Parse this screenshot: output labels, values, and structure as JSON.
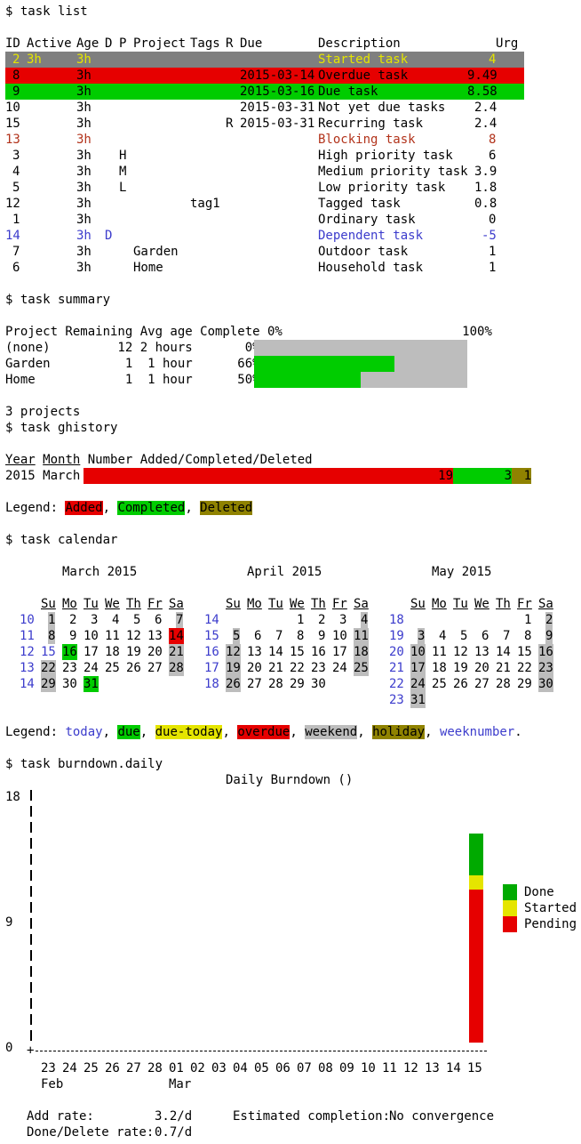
{
  "list": {
    "command": "$ task list",
    "headers": {
      "id": "ID",
      "active": "Active",
      "age": "Age",
      "d": "D",
      "p": "P",
      "project": "Project",
      "tags": "Tags",
      "r": "R",
      "due": "Due",
      "description": "Description",
      "urg": "Urg"
    },
    "rows": [
      {
        "id": "2",
        "active": "3h",
        "age": "3h",
        "d": "",
        "p": "",
        "project": "",
        "tags": "",
        "r": "",
        "due": "",
        "description": "Started task",
        "urg": "4"
      },
      {
        "id": "8",
        "active": "",
        "age": "3h",
        "d": "",
        "p": "",
        "project": "",
        "tags": "",
        "r": "",
        "due": "2015-03-14",
        "description": "Overdue task",
        "urg": "9.49"
      },
      {
        "id": "9",
        "active": "",
        "age": "3h",
        "d": "",
        "p": "",
        "project": "",
        "tags": "",
        "r": "",
        "due": "2015-03-16",
        "description": "Due task",
        "urg": "8.58"
      },
      {
        "id": "10",
        "active": "",
        "age": "3h",
        "d": "",
        "p": "",
        "project": "",
        "tags": "",
        "r": "",
        "due": "2015-03-31",
        "description": "Not yet due tasks",
        "urg": "2.4"
      },
      {
        "id": "15",
        "active": "",
        "age": "3h",
        "d": "",
        "p": "",
        "project": "",
        "tags": "",
        "r": "R",
        "due": "2015-03-31",
        "description": "Recurring task",
        "urg": "2.4"
      },
      {
        "id": "13",
        "active": "",
        "age": "3h",
        "d": "",
        "p": "",
        "project": "",
        "tags": "",
        "r": "",
        "due": "",
        "description": "Blocking task",
        "urg": "8"
      },
      {
        "id": "3",
        "active": "",
        "age": "3h",
        "d": "",
        "p": "H",
        "project": "",
        "tags": "",
        "r": "",
        "due": "",
        "description": "High priority task",
        "urg": "6"
      },
      {
        "id": "4",
        "active": "",
        "age": "3h",
        "d": "",
        "p": "M",
        "project": "",
        "tags": "",
        "r": "",
        "due": "",
        "description": "Medium priority task",
        "urg": "3.9"
      },
      {
        "id": "5",
        "active": "",
        "age": "3h",
        "d": "",
        "p": "L",
        "project": "",
        "tags": "",
        "r": "",
        "due": "",
        "description": "Low priority task",
        "urg": "1.8"
      },
      {
        "id": "12",
        "active": "",
        "age": "3h",
        "d": "",
        "p": "",
        "project": "",
        "tags": "tag1",
        "r": "",
        "due": "",
        "description": "Tagged task",
        "urg": "0.8"
      },
      {
        "id": "1",
        "active": "",
        "age": "3h",
        "d": "",
        "p": "",
        "project": "",
        "tags": "",
        "r": "",
        "due": "",
        "description": "Ordinary task",
        "urg": "0"
      },
      {
        "id": "14",
        "active": "",
        "age": "3h",
        "d": "D",
        "p": "",
        "project": "",
        "tags": "",
        "r": "",
        "due": "",
        "description": "Dependent task",
        "urg": "-5"
      },
      {
        "id": "7",
        "active": "",
        "age": "3h",
        "d": "",
        "p": "",
        "project": "Garden",
        "tags": "",
        "r": "",
        "due": "",
        "description": "Outdoor task",
        "urg": "1"
      },
      {
        "id": "6",
        "active": "",
        "age": "3h",
        "d": "",
        "p": "",
        "project": "Home",
        "tags": "",
        "r": "",
        "due": "",
        "description": "Household task",
        "urg": "1"
      }
    ],
    "row_styles": [
      {
        "bg": "#7f7f7f",
        "fg": "#e5e500"
      },
      {
        "bg": "#e60000",
        "fg": "#000000"
      },
      {
        "bg": "#00cc00",
        "fg": "#000000"
      },
      {
        "bg": "",
        "fg": "#000000"
      },
      {
        "bg": "",
        "fg": "#000000"
      },
      {
        "bg": "",
        "fg": "#b2331b"
      },
      {
        "bg": "",
        "fg": "#000000"
      },
      {
        "bg": "",
        "fg": "#000000"
      },
      {
        "bg": "",
        "fg": "#000000"
      },
      {
        "bg": "",
        "fg": "#000000"
      },
      {
        "bg": "",
        "fg": "#000000"
      },
      {
        "bg": "",
        "fg": "#3c3ccc"
      },
      {
        "bg": "",
        "fg": "#000000"
      },
      {
        "bg": "",
        "fg": "#000000"
      }
    ]
  },
  "summary": {
    "command": "$ task summary",
    "header": "Project Remaining Avg age Complete 0%                        100%",
    "rows": [
      {
        "line": "(none)         12 2 hours       0%",
        "complete": 0.0
      },
      {
        "line": "Garden          1  1 hour      66%",
        "complete": 0.66
      },
      {
        "line": "Home            1  1 hour      50%",
        "complete": 0.5
      }
    ],
    "footer": "3 projects"
  },
  "ghistory": {
    "command": "$ task ghistory",
    "col_year": "Year",
    "col_month": "Month",
    "col_rest": "Number Added/Completed/Deleted",
    "row_label": "2015 March",
    "added": 19,
    "completed": 3,
    "deleted": 1,
    "legend_prefix": "Legend: ",
    "legend_added": "Added",
    "legend_completed": "Completed",
    "legend_deleted": "Deleted",
    "comma": ", ",
    "colors": {
      "added": "#e60000",
      "completed": "#00cc00",
      "deleted": "#8f8200"
    }
  },
  "calendar": {
    "command": "$ task calendar",
    "day_headers": [
      "Su",
      "Mo",
      "Tu",
      "We",
      "Th",
      "Fr",
      "Sa"
    ],
    "months": [
      {
        "title": "March 2015",
        "weeks": [
          {
            "wk": "10",
            "days": [
              "1",
              "2",
              "3",
              "4",
              "5",
              "6",
              "7"
            ]
          },
          {
            "wk": "11",
            "days": [
              "8",
              "9",
              "10",
              "11",
              "12",
              "13",
              "14"
            ]
          },
          {
            "wk": "12",
            "days": [
              "15",
              "16",
              "17",
              "18",
              "19",
              "20",
              "21"
            ]
          },
          {
            "wk": "13",
            "days": [
              "22",
              "23",
              "24",
              "25",
              "26",
              "27",
              "28"
            ]
          },
          {
            "wk": "14",
            "days": [
              "29",
              "30",
              "31",
              "",
              "",
              "",
              ""
            ]
          }
        ],
        "marks": {
          "14": "overdue",
          "15": "today",
          "16": "due",
          "31": "due"
        }
      },
      {
        "title": "April 2015",
        "weeks": [
          {
            "wk": "14",
            "days": [
              "",
              "",
              "",
              "1",
              "2",
              "3",
              "4"
            ]
          },
          {
            "wk": "15",
            "days": [
              "5",
              "6",
              "7",
              "8",
              "9",
              "10",
              "11"
            ]
          },
          {
            "wk": "16",
            "days": [
              "12",
              "13",
              "14",
              "15",
              "16",
              "17",
              "18"
            ]
          },
          {
            "wk": "17",
            "days": [
              "19",
              "20",
              "21",
              "22",
              "23",
              "24",
              "25"
            ]
          },
          {
            "wk": "18",
            "days": [
              "26",
              "27",
              "28",
              "29",
              "30",
              "",
              ""
            ]
          }
        ],
        "marks": {}
      },
      {
        "title": "May 2015",
        "weeks": [
          {
            "wk": "18",
            "days": [
              "",
              "",
              "",
              "",
              "",
              "1",
              "2"
            ]
          },
          {
            "wk": "19",
            "days": [
              "3",
              "4",
              "5",
              "6",
              "7",
              "8",
              "9"
            ]
          },
          {
            "wk": "20",
            "days": [
              "10",
              "11",
              "12",
              "13",
              "14",
              "15",
              "16"
            ]
          },
          {
            "wk": "21",
            "days": [
              "17",
              "18",
              "19",
              "20",
              "21",
              "22",
              "23"
            ]
          },
          {
            "wk": "22",
            "days": [
              "24",
              "25",
              "26",
              "27",
              "28",
              "29",
              "30"
            ]
          },
          {
            "wk": "23",
            "days": [
              "31",
              "",
              "",
              "",
              "",
              "",
              ""
            ]
          }
        ],
        "marks": {}
      }
    ],
    "legend": [
      {
        "text": "Legend: ",
        "style": "plain"
      },
      {
        "text": "today",
        "style": "today"
      },
      {
        "text": ", ",
        "style": "plain"
      },
      {
        "text": "due",
        "style": "due"
      },
      {
        "text": ", ",
        "style": "plain"
      },
      {
        "text": "due-today",
        "style": "due-today"
      },
      {
        "text": ", ",
        "style": "plain"
      },
      {
        "text": "overdue",
        "style": "overdue"
      },
      {
        "text": ", ",
        "style": "plain"
      },
      {
        "text": "weekend",
        "style": "weekend"
      },
      {
        "text": ", ",
        "style": "plain"
      },
      {
        "text": "holiday",
        "style": "holiday"
      },
      {
        "text": ", ",
        "style": "plain"
      },
      {
        "text": "weeknumber",
        "style": "weeknumber"
      },
      {
        "text": ".",
        "style": "plain"
      }
    ]
  },
  "burndown": {
    "command": "$ task burndown.daily",
    "title": "Daily Burndown ()",
    "y_ticks": [
      "18",
      "9",
      "0"
    ],
    "y_max": 18,
    "x_days": [
      "23",
      "24",
      "25",
      "26",
      "27",
      "28",
      "01",
      "02",
      "03",
      "04",
      "05",
      "06",
      "07",
      "08",
      "09",
      "10",
      "11",
      "12",
      "13",
      "14",
      "15"
    ],
    "x_months": [
      {
        "label": "Feb",
        "at": "23"
      },
      {
        "label": "Mar",
        "at": "01"
      }
    ],
    "bar_day": "15",
    "pending": 11,
    "started": 1,
    "done": 3,
    "legend": [
      {
        "label": "Done",
        "color": "#00aa00"
      },
      {
        "label": "Started",
        "color": "#e5e500"
      },
      {
        "label": "Pending",
        "color": "#e60000"
      }
    ],
    "add_rate_label": "Add rate:",
    "add_rate": "3.2/d",
    "estimated_label": "Estimated completion:",
    "estimated": "No convergence",
    "done_rate_label": "Done/Delete rate:",
    "done_rate": "0.7/d"
  }
}
